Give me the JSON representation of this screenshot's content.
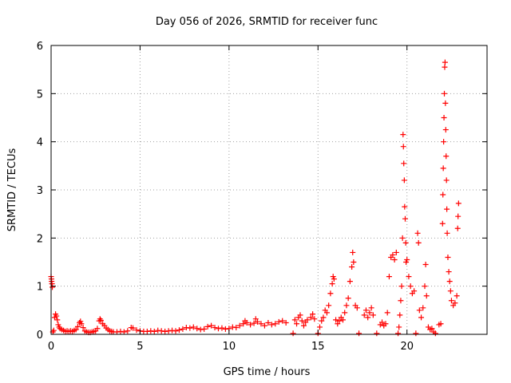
{
  "chart_data": {
    "type": "scatter",
    "title": "Day 056 of 2026, SRMTID for receiver func",
    "xlabel": "GPS time / hours",
    "ylabel": "SRMTID / TECUs",
    "xlim": [
      0,
      24.5
    ],
    "ylim": [
      0,
      6
    ],
    "xticks": [
      0,
      5,
      10,
      15,
      20
    ],
    "xtick_labels": [
      "0",
      "5",
      "10",
      "15",
      "20"
    ],
    "yticks": [
      0,
      1,
      2,
      3,
      4,
      5,
      6
    ],
    "ytick_labels": [
      "0",
      "1",
      "2",
      "3",
      "4",
      "5",
      "6"
    ],
    "grid": true,
    "marker": "+",
    "marker_color": "#ff0000",
    "series": [
      {
        "name": "SRMTID",
        "points": [
          [
            0.0,
            1.2
          ],
          [
            0.02,
            1.15
          ],
          [
            0.03,
            1.1
          ],
          [
            0.05,
            1.05
          ],
          [
            0.07,
            0.98
          ],
          [
            0.1,
            0.05
          ],
          [
            0.15,
            0.08
          ],
          [
            0.2,
            0.35
          ],
          [
            0.25,
            0.42
          ],
          [
            0.3,
            0.38
          ],
          [
            0.35,
            0.3
          ],
          [
            0.4,
            0.2
          ],
          [
            0.45,
            0.15
          ],
          [
            0.5,
            0.12
          ],
          [
            0.6,
            0.1
          ],
          [
            0.7,
            0.08
          ],
          [
            0.8,
            0.06
          ],
          [
            0.9,
            0.07
          ],
          [
            1.0,
            0.06
          ],
          [
            1.1,
            0.07
          ],
          [
            1.2,
            0.06
          ],
          [
            1.3,
            0.08
          ],
          [
            1.4,
            0.1
          ],
          [
            1.5,
            0.16
          ],
          [
            1.6,
            0.24
          ],
          [
            1.65,
            0.27
          ],
          [
            1.7,
            0.22
          ],
          [
            1.8,
            0.14
          ],
          [
            1.9,
            0.07
          ],
          [
            2.0,
            0.05
          ],
          [
            2.1,
            0.04
          ],
          [
            2.2,
            0.04
          ],
          [
            2.3,
            0.05
          ],
          [
            2.4,
            0.06
          ],
          [
            2.5,
            0.07
          ],
          [
            2.6,
            0.12
          ],
          [
            2.7,
            0.28
          ],
          [
            2.75,
            0.32
          ],
          [
            2.8,
            0.29
          ],
          [
            2.9,
            0.22
          ],
          [
            3.0,
            0.18
          ],
          [
            3.1,
            0.13
          ],
          [
            3.2,
            0.1
          ],
          [
            3.3,
            0.07
          ],
          [
            3.4,
            0.06
          ],
          [
            3.5,
            0.05
          ],
          [
            3.7,
            0.05
          ],
          [
            3.9,
            0.06
          ],
          [
            4.1,
            0.05
          ],
          [
            4.3,
            0.07
          ],
          [
            4.5,
            0.14
          ],
          [
            4.6,
            0.13
          ],
          [
            4.8,
            0.09
          ],
          [
            5.0,
            0.07
          ],
          [
            5.2,
            0.06
          ],
          [
            5.4,
            0.06
          ],
          [
            5.6,
            0.07
          ],
          [
            5.8,
            0.06
          ],
          [
            6.0,
            0.08
          ],
          [
            6.2,
            0.07
          ],
          [
            6.4,
            0.06
          ],
          [
            6.6,
            0.07
          ],
          [
            6.8,
            0.08
          ],
          [
            7.0,
            0.07
          ],
          [
            7.2,
            0.09
          ],
          [
            7.4,
            0.11
          ],
          [
            7.6,
            0.14
          ],
          [
            7.8,
            0.13
          ],
          [
            8.0,
            0.15
          ],
          [
            8.2,
            0.12
          ],
          [
            8.4,
            0.1
          ],
          [
            8.6,
            0.11
          ],
          [
            8.8,
            0.16
          ],
          [
            9.0,
            0.18
          ],
          [
            9.2,
            0.14
          ],
          [
            9.4,
            0.12
          ],
          [
            9.6,
            0.13
          ],
          [
            9.8,
            0.11
          ],
          [
            10.0,
            0.12
          ],
          [
            10.2,
            0.15
          ],
          [
            10.4,
            0.14
          ],
          [
            10.6,
            0.18
          ],
          [
            10.8,
            0.22
          ],
          [
            10.9,
            0.28
          ],
          [
            11.0,
            0.24
          ],
          [
            11.2,
            0.2
          ],
          [
            11.4,
            0.23
          ],
          [
            11.5,
            0.32
          ],
          [
            11.6,
            0.26
          ],
          [
            11.8,
            0.22
          ],
          [
            12.0,
            0.18
          ],
          [
            12.2,
            0.24
          ],
          [
            12.4,
            0.2
          ],
          [
            12.6,
            0.22
          ],
          [
            12.8,
            0.26
          ],
          [
            13.0,
            0.28
          ],
          [
            13.2,
            0.24
          ],
          [
            13.6,
            0.02
          ],
          [
            13.7,
            0.3
          ],
          [
            13.8,
            0.22
          ],
          [
            13.9,
            0.35
          ],
          [
            14.0,
            0.4
          ],
          [
            14.1,
            0.28
          ],
          [
            14.2,
            0.18
          ],
          [
            14.3,
            0.25
          ],
          [
            14.4,
            0.3
          ],
          [
            14.6,
            0.35
          ],
          [
            14.7,
            0.42
          ],
          [
            14.8,
            0.32
          ],
          [
            15.0,
            0.02
          ],
          [
            15.1,
            0.15
          ],
          [
            15.2,
            0.28
          ],
          [
            15.3,
            0.35
          ],
          [
            15.4,
            0.5
          ],
          [
            15.5,
            0.45
          ],
          [
            15.6,
            0.6
          ],
          [
            15.7,
            0.85
          ],
          [
            15.8,
            1.05
          ],
          [
            15.85,
            1.2
          ],
          [
            15.9,
            1.15
          ],
          [
            16.0,
            0.3
          ],
          [
            16.1,
            0.22
          ],
          [
            16.2,
            0.28
          ],
          [
            16.3,
            0.35
          ],
          [
            16.4,
            0.3
          ],
          [
            16.5,
            0.45
          ],
          [
            16.6,
            0.6
          ],
          [
            16.7,
            0.75
          ],
          [
            16.8,
            1.1
          ],
          [
            16.9,
            1.4
          ],
          [
            16.95,
            1.7
          ],
          [
            17.0,
            1.5
          ],
          [
            17.1,
            0.6
          ],
          [
            17.2,
            0.55
          ],
          [
            17.3,
            0.02
          ],
          [
            17.6,
            0.4
          ],
          [
            17.7,
            0.5
          ],
          [
            17.8,
            0.35
          ],
          [
            17.9,
            0.45
          ],
          [
            18.0,
            0.55
          ],
          [
            18.1,
            0.4
          ],
          [
            18.3,
            0.02
          ],
          [
            18.5,
            0.2
          ],
          [
            18.6,
            0.25
          ],
          [
            18.7,
            0.18
          ],
          [
            18.8,
            0.22
          ],
          [
            18.9,
            0.45
          ],
          [
            19.0,
            1.2
          ],
          [
            19.1,
            1.6
          ],
          [
            19.2,
            1.65
          ],
          [
            19.3,
            1.55
          ],
          [
            19.4,
            1.7
          ],
          [
            19.5,
            0.02
          ],
          [
            19.55,
            0.15
          ],
          [
            19.6,
            0.4
          ],
          [
            19.65,
            0.7
          ],
          [
            19.7,
            1.0
          ],
          [
            19.75,
            2.0
          ],
          [
            19.78,
            4.15
          ],
          [
            19.8,
            3.9
          ],
          [
            19.82,
            3.55
          ],
          [
            19.85,
            3.2
          ],
          [
            19.87,
            2.65
          ],
          [
            19.9,
            2.4
          ],
          [
            19.93,
            1.9
          ],
          [
            19.95,
            1.5
          ],
          [
            20.0,
            1.55
          ],
          [
            20.1,
            1.2
          ],
          [
            20.2,
            1.0
          ],
          [
            20.3,
            0.85
          ],
          [
            20.4,
            0.9
          ],
          [
            20.5,
            0.02
          ],
          [
            20.6,
            2.1
          ],
          [
            20.65,
            1.9
          ],
          [
            20.7,
            0.5
          ],
          [
            20.8,
            0.35
          ],
          [
            20.9,
            0.55
          ],
          [
            21.0,
            1.0
          ],
          [
            21.05,
            1.45
          ],
          [
            21.1,
            0.8
          ],
          [
            21.2,
            0.15
          ],
          [
            21.3,
            0.1
          ],
          [
            21.4,
            0.12
          ],
          [
            21.5,
            0.05
          ],
          [
            21.6,
            0.02
          ],
          [
            21.8,
            0.2
          ],
          [
            21.9,
            0.22
          ],
          [
            22.0,
            2.3
          ],
          [
            22.02,
            2.9
          ],
          [
            22.04,
            3.45
          ],
          [
            22.06,
            4.0
          ],
          [
            22.08,
            4.5
          ],
          [
            22.1,
            5.0
          ],
          [
            22.12,
            5.55
          ],
          [
            22.14,
            5.65
          ],
          [
            22.16,
            4.8
          ],
          [
            22.18,
            4.25
          ],
          [
            22.2,
            3.7
          ],
          [
            22.22,
            3.2
          ],
          [
            22.24,
            2.6
          ],
          [
            22.26,
            2.1
          ],
          [
            22.3,
            1.6
          ],
          [
            22.35,
            1.3
          ],
          [
            22.4,
            1.1
          ],
          [
            22.45,
            0.9
          ],
          [
            22.5,
            0.7
          ],
          [
            22.6,
            0.6
          ],
          [
            22.7,
            0.65
          ],
          [
            22.8,
            0.8
          ],
          [
            22.85,
            2.2
          ],
          [
            22.87,
            2.45
          ],
          [
            22.9,
            2.72
          ]
        ]
      }
    ]
  }
}
